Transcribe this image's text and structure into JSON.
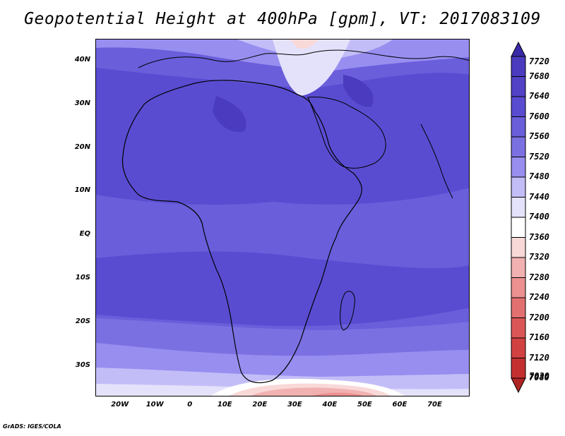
{
  "title": "Geopotential Height at 400hPa [gpm], VT: 2017083109",
  "credit": "GrADS: IGES/COLA",
  "map": {
    "lon_range": [
      -27,
      80
    ],
    "lat_range": [
      -37,
      45
    ],
    "lat_ticks": [
      {
        "lat": 40,
        "label": "40N"
      },
      {
        "lat": 30,
        "label": "30N"
      },
      {
        "lat": 20,
        "label": "20N"
      },
      {
        "lat": 10,
        "label": "10N"
      },
      {
        "lat": 0,
        "label": "EQ"
      },
      {
        "lat": -10,
        "label": "10S"
      },
      {
        "lat": -20,
        "label": "20S"
      },
      {
        "lat": -30,
        "label": "30S"
      }
    ],
    "lon_ticks": [
      {
        "lon": -20,
        "label": "20W"
      },
      {
        "lon": -10,
        "label": "10W"
      },
      {
        "lon": 0,
        "label": "0"
      },
      {
        "lon": 10,
        "label": "10E"
      },
      {
        "lon": 20,
        "label": "20E"
      },
      {
        "lon": 30,
        "label": "30E"
      },
      {
        "lon": 40,
        "label": "40E"
      },
      {
        "lon": 50,
        "label": "50E"
      },
      {
        "lon": 60,
        "label": "60E"
      },
      {
        "lon": 70,
        "label": "70E"
      }
    ],
    "coastline_color": "#000000"
  },
  "colorbar": {
    "levels": [
      "7720",
      "7680",
      "7640",
      "7600",
      "7560",
      "7520",
      "7480",
      "7440",
      "7400",
      "7360",
      "7320",
      "7280",
      "7240",
      "7200",
      "7160",
      "7120",
      "7080",
      "7030"
    ],
    "colors": [
      "#3a2aa8",
      "#4b3bbf",
      "#5142c6",
      "#5a4cd1",
      "#6a5edb",
      "#7b70e2",
      "#978ef0",
      "#c3bdf7",
      "#e4e2fb",
      "#ffffff",
      "#f9d8d8",
      "#f2b1b1",
      "#ec9090",
      "#e27070",
      "#db5757",
      "#d24141",
      "#c43030",
      "#b02424"
    ]
  }
}
